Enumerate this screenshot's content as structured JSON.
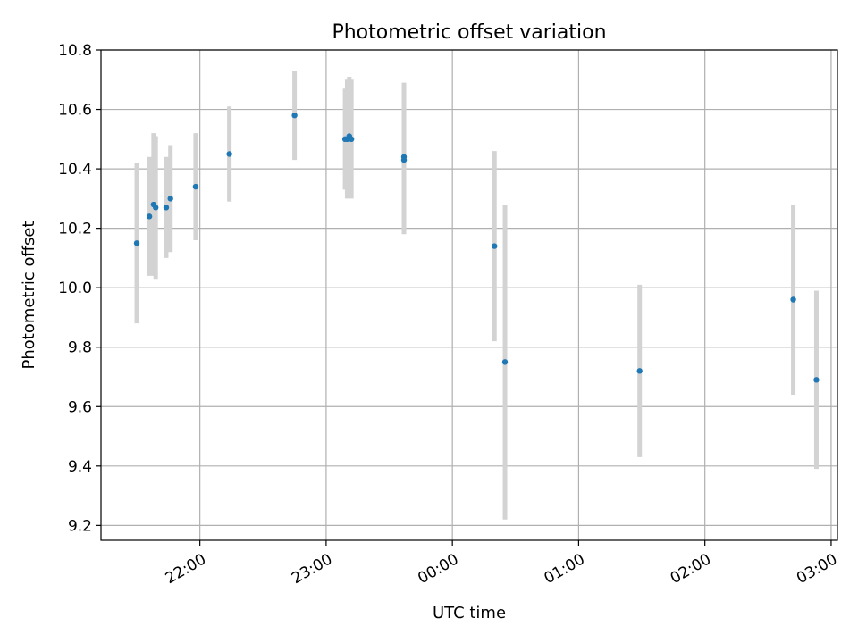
{
  "chart_data": {
    "type": "scatter",
    "title": "Photometric offset variation",
    "xlabel": "UTC time",
    "ylabel": "Photometric offset",
    "x_unit": "UTC time (HH:MM), points span midnight",
    "x_ticks": [
      "22:00",
      "23:00",
      "00:00",
      "01:00",
      "02:00",
      "03:00"
    ],
    "xlim": [
      "21:13",
      "03:03"
    ],
    "ylim": [
      9.15,
      10.8
    ],
    "y_ticks": [
      9.2,
      9.4,
      9.6,
      9.8,
      10.0,
      10.2,
      10.4,
      10.6,
      10.8
    ],
    "grid": true,
    "marker_color": "#1f77b4",
    "errorbar_color": "#d3d3d3",
    "points": [
      {
        "x": "21:30",
        "y": 10.15,
        "yerr": 0.27
      },
      {
        "x": "21:36",
        "y": 10.24,
        "yerr": 0.2
      },
      {
        "x": "21:38",
        "y": 10.28,
        "yerr": 0.24
      },
      {
        "x": "21:39",
        "y": 10.27,
        "yerr": 0.24
      },
      {
        "x": "21:44",
        "y": 10.27,
        "yerr": 0.17
      },
      {
        "x": "21:46",
        "y": 10.3,
        "yerr": 0.18
      },
      {
        "x": "21:58",
        "y": 10.34,
        "yerr": 0.18
      },
      {
        "x": "22:14",
        "y": 10.45,
        "yerr": 0.16
      },
      {
        "x": "22:45",
        "y": 10.58,
        "yerr": 0.15
      },
      {
        "x": "23:09",
        "y": 10.5,
        "yerr": 0.17
      },
      {
        "x": "23:10",
        "y": 10.5,
        "yerr": 0.2
      },
      {
        "x": "23:11",
        "y": 10.51,
        "yerr": 0.2
      },
      {
        "x": "23:12",
        "y": 10.5,
        "yerr": 0.2
      },
      {
        "x": "23:37",
        "y": 10.44,
        "yerr": 0.25
      },
      {
        "x": "23:37",
        "y": 10.43,
        "yerr": 0.25
      },
      {
        "x": "00:20",
        "y": 10.14,
        "yerr": 0.32
      },
      {
        "x": "00:25",
        "y": 9.75,
        "yerr": 0.53
      },
      {
        "x": "01:29",
        "y": 9.72,
        "yerr": 0.29
      },
      {
        "x": "02:42",
        "y": 9.96,
        "yerr": 0.32
      },
      {
        "x": "02:53",
        "y": 9.69,
        "yerr": 0.3
      }
    ]
  }
}
